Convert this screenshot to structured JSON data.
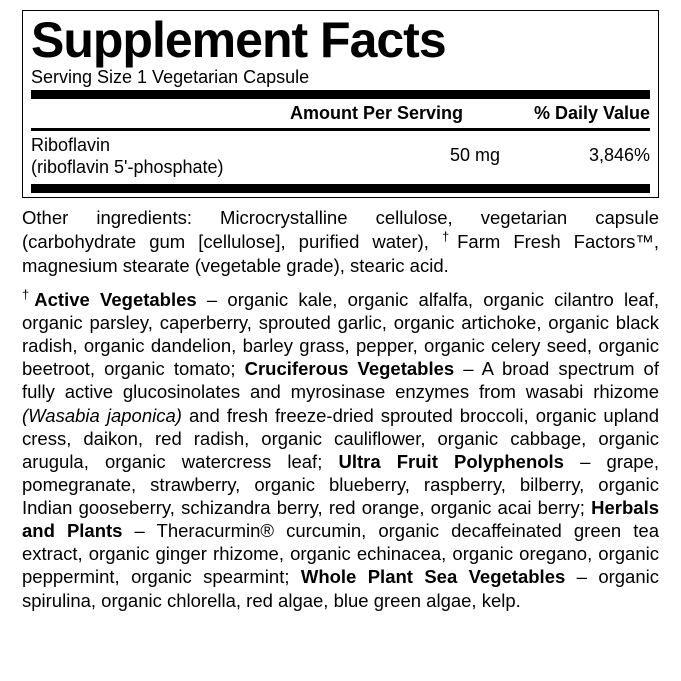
{
  "title": "Supplement Facts",
  "serving": "Serving Size 1 Vegetarian Capsule",
  "headers": {
    "amount": "Amount Per Serving",
    "dv": "% Daily Value"
  },
  "row": {
    "name1": "Riboflavin",
    "name2": " (riboflavin 5'-phosphate)",
    "amount": "50 mg",
    "dv": "3,846%"
  },
  "other_pre": "Other ingredients: Microcrystalline cellulose, vegetarian capsule (carbohydrate gum [cellulose], purified water), ",
  "other_ff": "Farm Fresh Factors™",
  "other_post": ", magnesium stearate (vegetable grade), stearic acid.",
  "sec1_title": "Active Vegetables",
  "sec1_body": " – organic kale, organic alfalfa, organic cilantro leaf, organic parsley, caperberry, sprouted garlic, organic artichoke, organic black radish, organic dandelion, barley grass, pepper, organic celery seed, organic beetroot, organic tomato; ",
  "sec2_title": "Cruciferous Vegetables",
  "sec2_body1": " – A broad spectrum of fully active glucosinolates and myrosinase enzymes from wasabi rhizome ",
  "sec2_italic": "(Wasabia japonica)",
  "sec2_body2": " and fresh freeze-dried sprouted broccoli, organic upland cress, daikon, red radish, organic cauliflower, organic cabbage, organic arugula, organic watercress leaf; ",
  "sec3_title": "Ultra Fruit Polyphenols",
  "sec3_body": " – grape, pomegranate, strawberry, organic blueberry, raspberry, bilberry, organic Indian gooseberry, schizandra berry, red orange, organic acai berry; ",
  "sec4_title": "Herbals and Plants",
  "sec4_body1": " – Theracurmin",
  "sec4_reg": "®",
  "sec4_body2": " curcumin, organic decaffeinated green tea extract, organic ginger rhizome, organic echinacea, organic oregano, organic peppermint, organic spearmint; ",
  "sec5_title": "Whole Plant Sea Vegetables",
  "sec5_body": " – organic spirulina, organic chlorella, red algae, blue green algae, kelp.",
  "dagger": "†"
}
